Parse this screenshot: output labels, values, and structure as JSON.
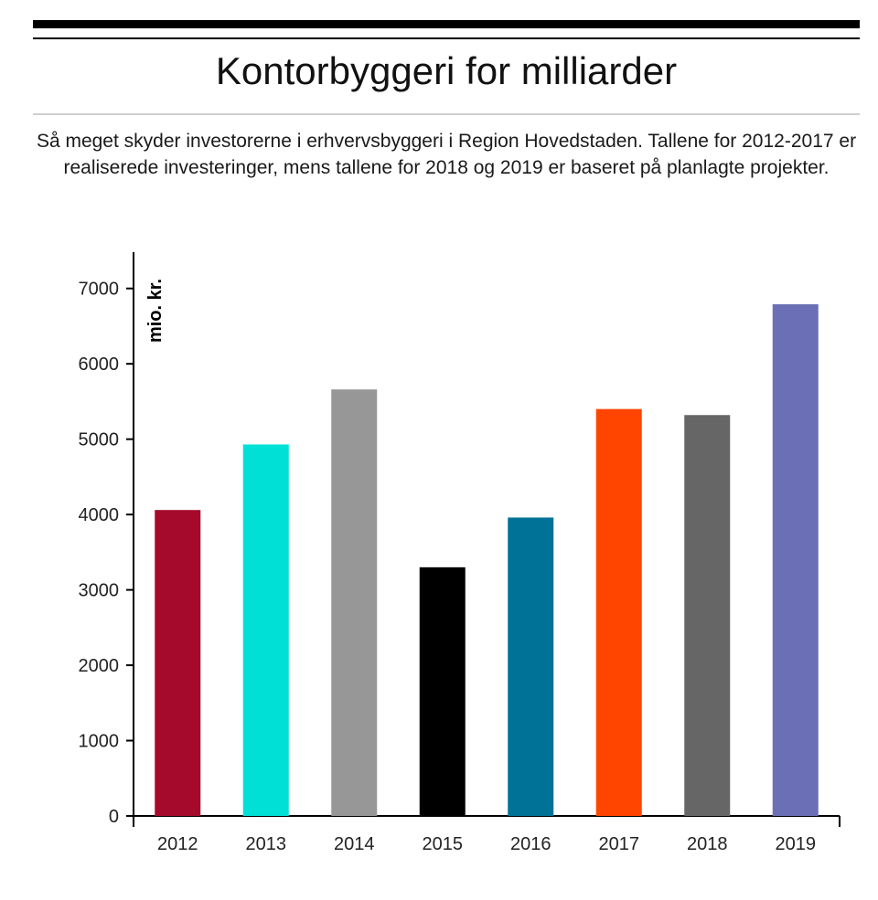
{
  "header": {
    "title": "Kontorbyggeri for milliarder",
    "subtitle": "Så meget skyder investorerne i erhvervsbyggeri i Region Hovedstaden. Tallene for 2012-2017 er realiserede investeringer, mens tallene for 2018 og 2019 er baseret på planlagte projekter."
  },
  "chart_data": {
    "type": "bar",
    "title": "Kontorbyggeri for milliarder",
    "subtitle": "Så meget skyder investorerne i erhvervsbyggeri i Region Hovedstaden. Tallene for 2012-2017 er realiserede investeringer, mens tallene for 2018 og 2019 er baseret på planlagte projekter.",
    "categories": [
      "2012",
      "2013",
      "2014",
      "2015",
      "2016",
      "2017",
      "2018",
      "2019"
    ],
    "values": [
      4060,
      4930,
      5660,
      3300,
      3960,
      5400,
      5320,
      6790
    ],
    "colors": [
      "#a50a2c",
      "#00e0d6",
      "#979797",
      "#000000",
      "#007298",
      "#ff4500",
      "#666666",
      "#6b6fb5"
    ],
    "xlabel": "",
    "ylabel": "mio. kr.",
    "ylim": [
      0,
      7500
    ],
    "yticks": [
      0,
      1000,
      2000,
      3000,
      4000,
      5000,
      6000,
      7000
    ],
    "grid": false,
    "legend": "none"
  }
}
